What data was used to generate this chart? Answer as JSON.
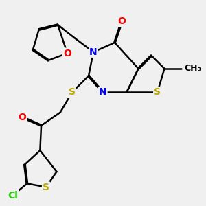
{
  "bg_color": "#f0f0f0",
  "atom_colors": {
    "C": "#000000",
    "N": "#0000ee",
    "O": "#ff0000",
    "S": "#bbaa00",
    "Cl": "#22cc00"
  },
  "bond_color": "#000000",
  "bond_width": 1.8,
  "font_size_atom": 10
}
